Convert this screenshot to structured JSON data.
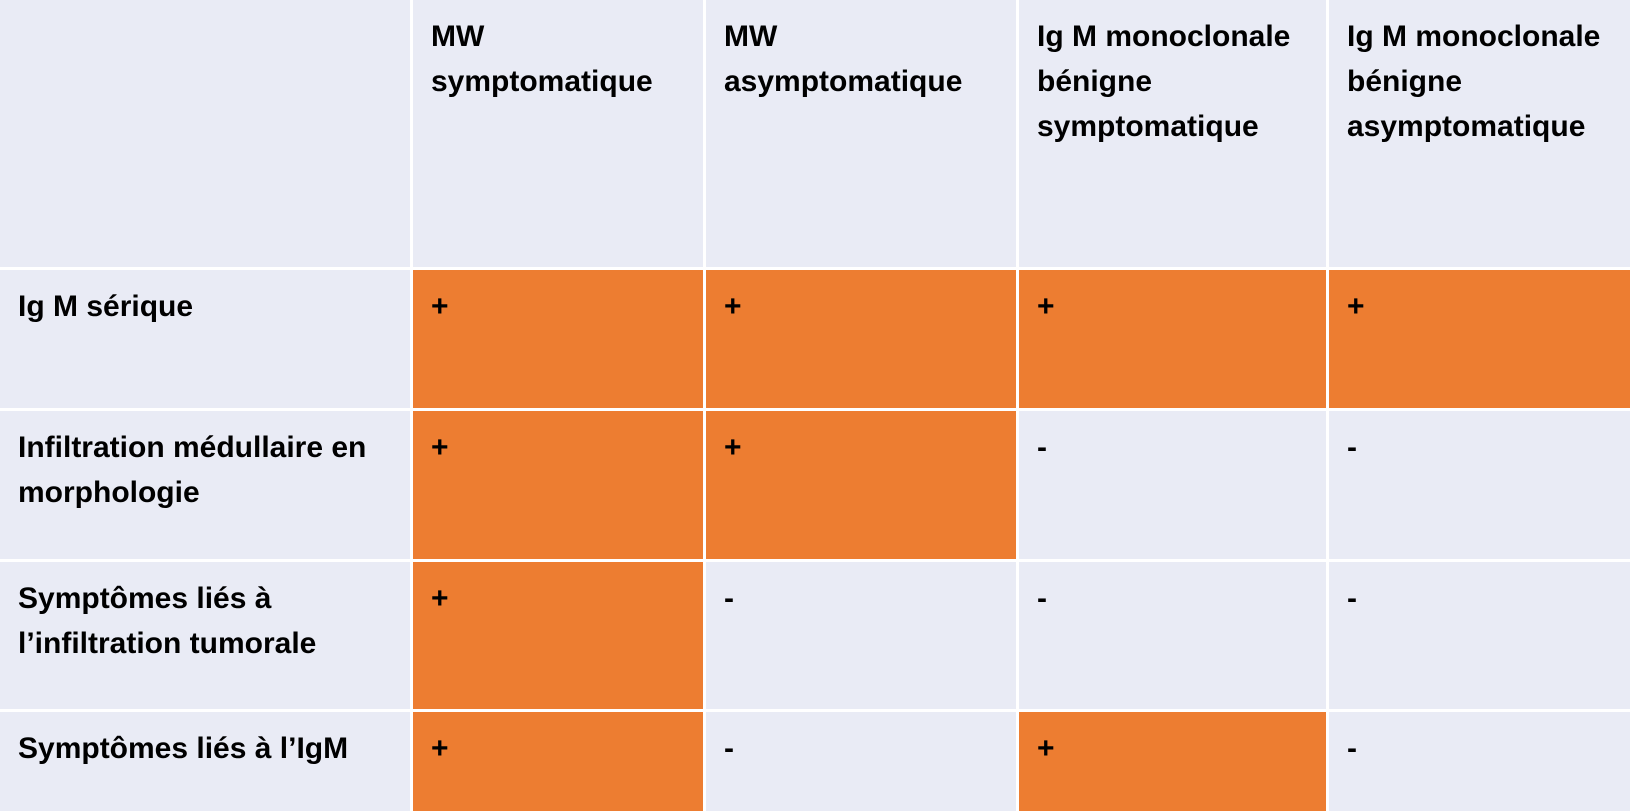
{
  "table": {
    "columns": [
      "",
      "MW symptomatique",
      "MW asymptomatique",
      "Ig M monoclonale bénigne symptomatique",
      "Ig M monoclonale bénigne asymptomatique"
    ],
    "rows": [
      {
        "label": "Ig M sérique",
        "values": [
          "+",
          "+",
          "+",
          "+"
        ],
        "highlighted": [
          true,
          true,
          true,
          true
        ]
      },
      {
        "label": "Infiltration médullaire en morphologie",
        "values": [
          "+",
          "+",
          "-",
          "-"
        ],
        "highlighted": [
          true,
          true,
          false,
          false
        ]
      },
      {
        "label": "Symptômes liés à l’infiltration tumorale",
        "values": [
          "+",
          "-",
          "-",
          "-"
        ],
        "highlighted": [
          true,
          false,
          false,
          false
        ]
      },
      {
        "label": "Symptômes liés à l’IgM",
        "values": [
          "+",
          "-",
          "+",
          "-"
        ],
        "highlighted": [
          true,
          false,
          true,
          false
        ]
      }
    ]
  },
  "colors": {
    "cell_background": "#e9ebf5",
    "highlight": "#ed7d31",
    "grid_lines": "#ffffff",
    "text": "#000000"
  }
}
